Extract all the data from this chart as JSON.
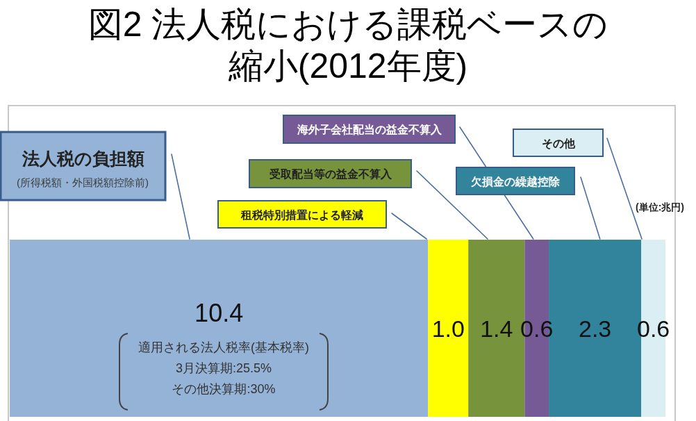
{
  "chart_data": {
    "type": "bar",
    "orientation": "horizontal",
    "stacked": true,
    "title": "図2 法人税における課税ベースの縮小(2012年度)",
    "categories": [
      null
    ],
    "series": [
      {
        "name": "法人税の負担額",
        "color": "#95b3d7",
        "values": [
          10.4
        ],
        "value_labels": [
          "10.4"
        ]
      },
      {
        "name": "租税特別措置による軽減",
        "color": "#ffff00",
        "values": [
          1.0
        ],
        "value_labels": [
          "1.0"
        ]
      },
      {
        "name": "受取配当等の益金不算入",
        "color": "#77933c",
        "values": [
          1.4
        ],
        "value_labels": [
          "1.4"
        ]
      },
      {
        "name": "海外子会社配当の益金不算入",
        "color": "#765a96",
        "values": [
          0.6
        ],
        "value_labels": [
          "0.6"
        ]
      },
      {
        "name": "欠損金の繰越控除",
        "color": "#31849b",
        "values": [
          2.3
        ],
        "value_labels": [
          "2.3"
        ]
      },
      {
        "name": "その他",
        "color": "#daeef3",
        "values": [
          0.6
        ],
        "value_labels": [
          "0.6"
        ]
      }
    ],
    "annotations": [
      "(所得税額・外国税額控除前)",
      "(単位:兆円)",
      "適用される法人税率(基本税率)",
      "3月決算期:25.5%",
      "その他決算期:30%"
    ]
  }
}
